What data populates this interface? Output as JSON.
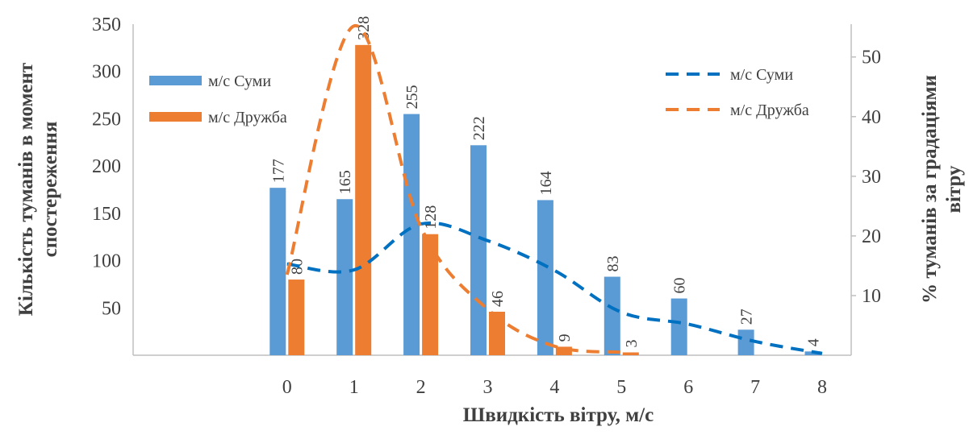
{
  "chart_data": {
    "type": "bar_line",
    "x_label": "Швидкість вітру, м/с",
    "y_label": [
      "Кількість туманів в момент",
      "спостереження"
    ],
    "y2_label": [
      "% туманів за градаціями",
      "вітру"
    ],
    "categories": [
      null,
      null,
      "0",
      "1",
      "2",
      "3",
      "4",
      "5",
      "6",
      "7",
      "8"
    ],
    "ylim": [
      0,
      350
    ],
    "yticks": [
      50,
      100,
      150,
      200,
      250,
      300,
      350
    ],
    "y2lim": [
      0,
      55.5
    ],
    "y2ticks": [
      10,
      20,
      30,
      40,
      50
    ],
    "series": [
      {
        "name": "м/с Суми",
        "kind": "bar",
        "color": "#5b9bd5",
        "values": [
          null,
          null,
          177,
          165,
          255,
          222,
          164,
          83,
          60,
          27,
          4
        ]
      },
      {
        "name": "м/с Дружба",
        "kind": "bar",
        "color": "#ed7d31",
        "values": [
          null,
          null,
          80,
          328,
          128,
          46,
          9,
          3,
          null,
          null,
          null
        ]
      },
      {
        "name": "м/с Суми",
        "kind": "line",
        "axis": "y2",
        "color": "#0070c0",
        "values": [
          null,
          null,
          15.3,
          14.3,
          22.0,
          19.2,
          14.2,
          7.2,
          5.2,
          2.3,
          0.3
        ]
      },
      {
        "name": "м/с Дружба",
        "kind": "line",
        "axis": "y2",
        "color": "#ed7d31",
        "values": [
          null,
          null,
          13.5,
          55.2,
          21.5,
          7.7,
          1.5,
          0.5,
          null,
          null,
          null
        ]
      }
    ]
  }
}
